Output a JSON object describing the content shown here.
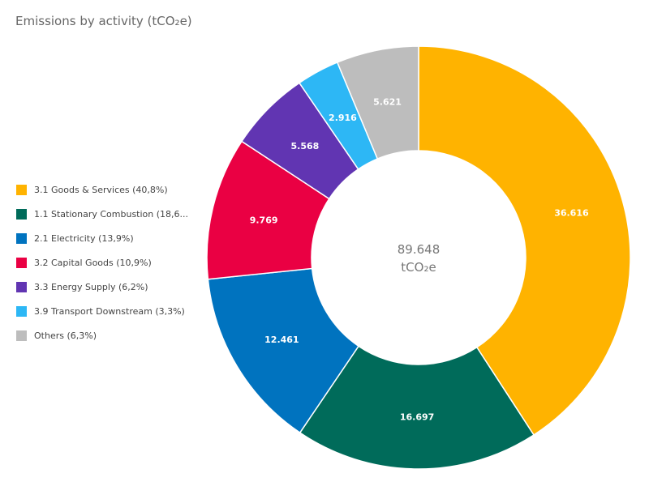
{
  "chart_data": {
    "type": "pie",
    "title": "Emissions by activity (tCO₂e)",
    "center_value": "89.648",
    "center_unit": "tCO₂e",
    "slices": [
      {
        "legend": "3.1 Goods & Services (40,8%)",
        "value": 36.616,
        "value_label": "36.616",
        "color": "#FFB300"
      },
      {
        "legend": "1.1 Stationary Combustion (18,6...",
        "value": 16.697,
        "value_label": "16.697",
        "color": "#006B5A"
      },
      {
        "legend": "2.1 Electricity (13,9%)",
        "value": 12.461,
        "value_label": "12.461",
        "color": "#0073BF"
      },
      {
        "legend": "3.2 Capital Goods (10,9%)",
        "value": 9.769,
        "value_label": "9.769",
        "color": "#EA0043"
      },
      {
        "legend": "3.3 Energy Supply (6,2%)",
        "value": 5.568,
        "value_label": "5.568",
        "color": "#6135B2"
      },
      {
        "legend": "3.9 Transport Downstream (3,3%)",
        "value": 2.916,
        "value_label": "2.916",
        "color": "#2DB7F5"
      },
      {
        "legend": "Others (6,3%)",
        "value": 5.621,
        "value_label": "5.621",
        "color": "#BDBDBD"
      }
    ],
    "legend_position": "left",
    "donut": true
  }
}
